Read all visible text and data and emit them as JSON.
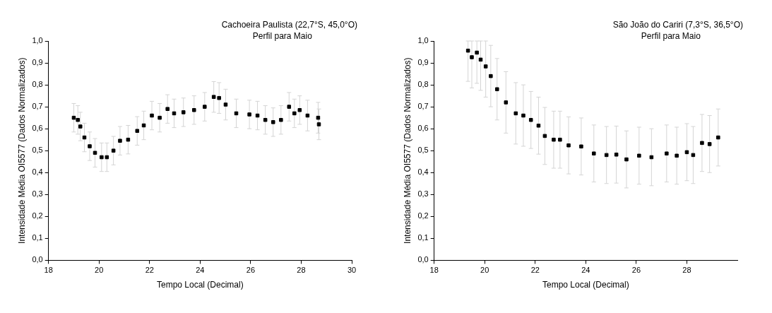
{
  "chart_data": [
    {
      "type": "scatter",
      "title": "Cachoeira Paulista (22,7°S, 45,0°O)",
      "subtitle": "Perfil para Maio",
      "xlabel": "Tempo Local (Decimal)",
      "ylabel": "Intensidade Média OI5577 (Dados Normalizados)",
      "marker": "square",
      "legend": false,
      "grid": false,
      "xlim": [
        18,
        30
      ],
      "xticks": [
        18,
        20,
        22,
        24,
        26,
        28,
        30
      ],
      "ylim": [
        0,
        1
      ],
      "yticks": [
        {
          "value": 0,
          "label": "0,0"
        },
        {
          "value": 0.1,
          "label": "0,1"
        },
        {
          "value": 0.2,
          "label": "0,2"
        },
        {
          "value": 0.3,
          "label": "0,3"
        },
        {
          "value": 0.4,
          "label": "0,4"
        },
        {
          "value": 0.5,
          "label": "0,5"
        },
        {
          "value": 0.6,
          "label": "0,6"
        },
        {
          "value": 0.7,
          "label": "0,7"
        },
        {
          "value": 0.8,
          "label": "0,8"
        },
        {
          "value": 0.9,
          "label": "0,9"
        },
        {
          "value": 1,
          "label": "1,0"
        }
      ],
      "series": [
        {
          "color": "#000000",
          "x": [
            19.0,
            19.16,
            19.26,
            19.42,
            19.63,
            19.84,
            20.1,
            20.31,
            20.57,
            20.83,
            21.15,
            21.51,
            21.77,
            22.09,
            22.4,
            22.71,
            22.97,
            23.34,
            23.76,
            24.18,
            24.54,
            24.75,
            25.01,
            25.43,
            25.95,
            26.27,
            26.58,
            26.89,
            27.2,
            27.52,
            27.73,
            27.94,
            28.25,
            28.67,
            28.7
          ],
          "values": [
            0.65,
            0.64,
            0.61,
            0.56,
            0.52,
            0.49,
            0.47,
            0.47,
            0.5,
            0.545,
            0.55,
            0.59,
            0.615,
            0.66,
            0.65,
            0.69,
            0.67,
            0.675,
            0.685,
            0.7,
            0.745,
            0.74,
            0.71,
            0.67,
            0.665,
            0.66,
            0.64,
            0.63,
            0.64,
            0.7,
            0.67,
            0.685,
            0.66,
            0.65,
            0.62
          ],
          "errors": [
            0.065,
            0.065,
            0.065,
            0.065,
            0.065,
            0.065,
            0.065,
            0.065,
            0.065,
            0.065,
            0.065,
            0.065,
            0.065,
            0.065,
            0.065,
            0.065,
            0.065,
            0.065,
            0.065,
            0.065,
            0.07,
            0.07,
            0.07,
            0.065,
            0.065,
            0.065,
            0.065,
            0.065,
            0.065,
            0.065,
            0.065,
            0.065,
            0.07,
            0.07,
            0.07
          ]
        }
      ]
    },
    {
      "type": "scatter",
      "title": "São João do Cariri (7,3°S, 36,5°O)",
      "subtitle": "Perfil para Maio",
      "xlabel": "Tempo Local (Decimal)",
      "ylabel": "Intensidade Média OI5577 (Dados Normalizados)",
      "marker": "square",
      "legend": false,
      "grid": false,
      "xlim": [
        18,
        30
      ],
      "xticks": [
        18,
        20,
        22,
        24,
        26,
        28
      ],
      "ylim": [
        0,
        1
      ],
      "yticks": [
        {
          "value": 0,
          "label": "0,0"
        },
        {
          "value": 0.1,
          "label": "0,1"
        },
        {
          "value": 0.2,
          "label": "0,2"
        },
        {
          "value": 0.3,
          "label": "0,3"
        },
        {
          "value": 0.4,
          "label": "0,4"
        },
        {
          "value": 0.5,
          "label": "0,5"
        },
        {
          "value": 0.6,
          "label": "0,6"
        },
        {
          "value": 0.7,
          "label": "0,7"
        },
        {
          "value": 0.8,
          "label": "0,8"
        },
        {
          "value": 0.9,
          "label": "0,9"
        },
        {
          "value": 1,
          "label": "1,0"
        }
      ],
      "series": [
        {
          "color": "#000000",
          "x": [
            19.34,
            19.49,
            19.69,
            19.84,
            20.04,
            20.24,
            20.49,
            20.84,
            21.23,
            21.53,
            21.83,
            22.13,
            22.38,
            22.73,
            22.98,
            23.32,
            23.82,
            24.32,
            24.82,
            25.21,
            25.61,
            26.11,
            26.6,
            27.2,
            27.6,
            28.0,
            28.25,
            28.6,
            28.9,
            29.24
          ],
          "values": [
            0.956,
            0.926,
            0.947,
            0.915,
            0.884,
            0.84,
            0.78,
            0.72,
            0.67,
            0.66,
            0.64,
            0.614,
            0.567,
            0.55,
            0.55,
            0.524,
            0.519,
            0.487,
            0.48,
            0.482,
            0.46,
            0.477,
            0.47,
            0.487,
            0.477,
            0.493,
            0.48,
            0.535,
            0.53,
            0.56
          ],
          "errors": [
            [
              0.816,
              1.0
            ],
            [
              0.786,
              1.0
            ],
            [
              0.807,
              1.0
            ],
            [
              0.775,
              1.0
            ],
            [
              0.744,
              1.0
            ],
            0.14,
            0.14,
            0.14,
            0.14,
            0.14,
            0.13,
            0.13,
            0.13,
            0.13,
            0.13,
            0.13,
            0.13,
            0.13,
            0.13,
            0.13,
            0.13,
            0.13,
            0.13,
            0.13,
            0.13,
            0.13,
            0.13,
            0.13,
            0.13,
            0.13
          ]
        }
      ]
    }
  ]
}
